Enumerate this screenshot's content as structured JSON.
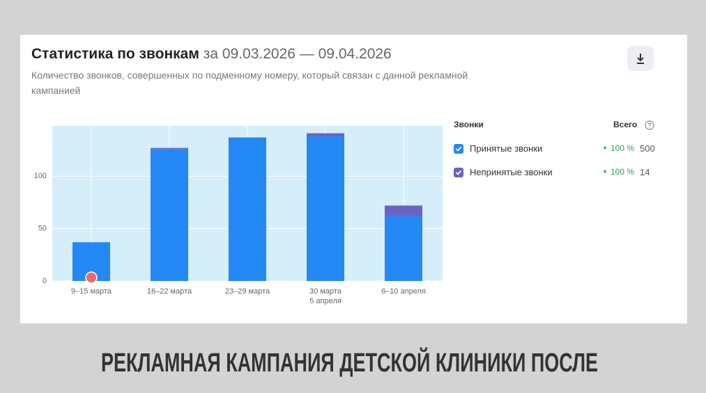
{
  "chart_data": {
    "type": "stacked-bar",
    "title": "Статистика по звонкам",
    "period": "за 09.03.2026 — 09.04.2026",
    "subtitle": "Количество звонков, совершенных по подменному номеру, который связан с данной рекламной кампанией",
    "categories": [
      "9–15 марта",
      "16–22 марта",
      "23–29 марта",
      "30 марта\n5 апреля",
      "6–10 апреля"
    ],
    "series": [
      {
        "name": "Принятые звонки",
        "color": "#2489f4",
        "values": [
          37,
          126,
          137,
          138,
          62
        ],
        "change": "100 %",
        "total": 500
      },
      {
        "name": "Непринятые звонки",
        "color": "#6b63c4",
        "values": [
          0,
          1,
          0,
          3,
          10
        ],
        "change": "100 %",
        "total": 14
      }
    ],
    "legend_title": "Звонки",
    "total_label": "Всего",
    "ylim": [
      0,
      148
    ],
    "yticks": [
      0,
      50,
      100
    ],
    "grid": true
  },
  "caption": "РЕКЛАМНАЯ КАМПАНИЯ ДЕТСКОЙ КЛИНИКИ ПОСЛЕ"
}
